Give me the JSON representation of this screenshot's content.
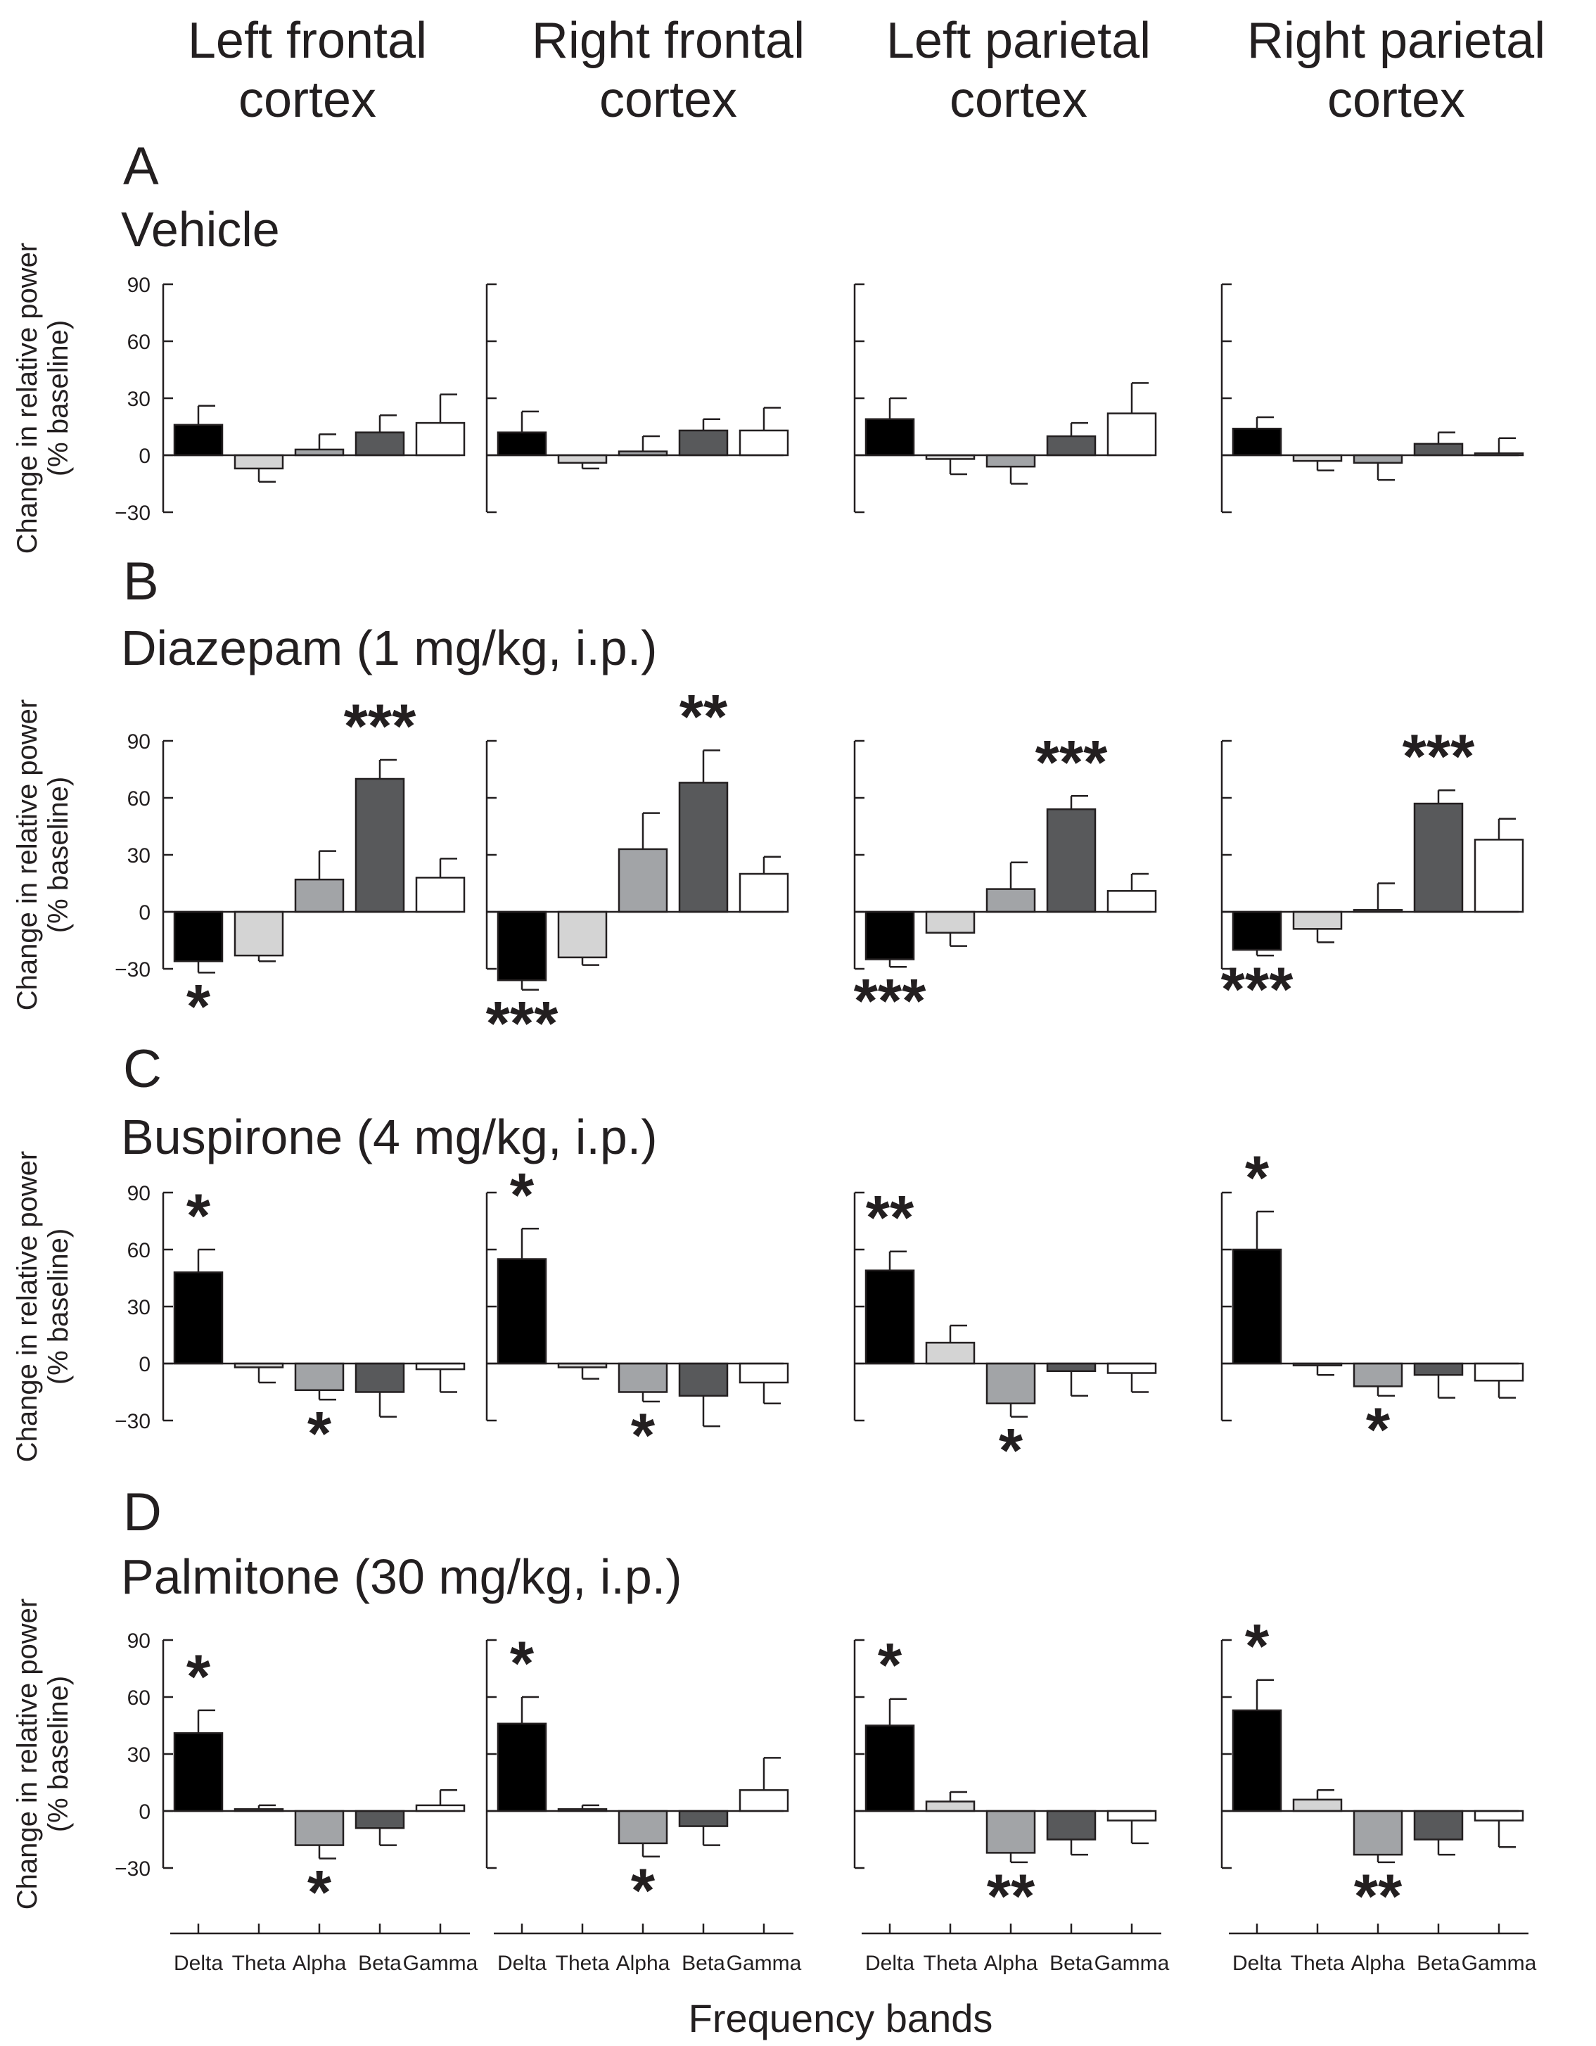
{
  "columns": [
    "Left frontal\ncortex",
    "Right frontal\ncortex",
    "Left parietal\ncortex",
    "Right parietal\ncortex"
  ],
  "ylabel_line1": "Change in relative power",
  "ylabel_line2": "(% baseline)",
  "xlabel": "Frequency bands",
  "colors": {
    "Delta": "#000000",
    "Theta": "#d4d4d4",
    "Alpha": "#a2a4a7",
    "Beta": "#58595b",
    "Gamma": "#ffffff"
  },
  "chart_data": {
    "type": "bar",
    "categories": [
      "Delta",
      "Theta",
      "Alpha",
      "Beta",
      "Gamma"
    ],
    "yticks": [
      90,
      60,
      30,
      0,
      -30
    ],
    "ytick_labels": [
      "90",
      "60",
      "30",
      "0",
      "−30"
    ],
    "ylim": [
      -30,
      90
    ],
    "panels": [
      {
        "letter": "A",
        "title": "Vehicle",
        "regions": [
          {
            "values": [
              16,
              -7,
              3,
              12,
              17
            ],
            "errors": [
              10,
              7,
              8,
              9,
              15
            ],
            "stars": []
          },
          {
            "values": [
              12,
              -4,
              2,
              13,
              13
            ],
            "errors": [
              11,
              3,
              8,
              6,
              12
            ],
            "stars": []
          },
          {
            "values": [
              19,
              -2,
              -6,
              10,
              22
            ],
            "errors": [
              11,
              8,
              9,
              7,
              16
            ],
            "stars": []
          },
          {
            "values": [
              14,
              -3,
              -4,
              6,
              1
            ],
            "errors": [
              6,
              5,
              9,
              6,
              8
            ],
            "stars": []
          }
        ]
      },
      {
        "letter": "B",
        "title": "Diazepam (1 mg/kg, i.p.)",
        "regions": [
          {
            "values": [
              -26,
              -23,
              17,
              70,
              18
            ],
            "errors": [
              6,
              3,
              15,
              10,
              10
            ],
            "stars": [
              {
                "category": "Delta",
                "text": "*",
                "side": "below"
              },
              {
                "category": "Beta",
                "text": "***",
                "side": "above"
              }
            ]
          },
          {
            "values": [
              -36,
              -24,
              33,
              68,
              20
            ],
            "errors": [
              5,
              4,
              19,
              17,
              9
            ],
            "stars": [
              {
                "category": "Delta",
                "text": "***",
                "side": "below"
              },
              {
                "category": "Beta",
                "text": "**",
                "side": "above"
              }
            ]
          },
          {
            "values": [
              -25,
              -11,
              12,
              54,
              11
            ],
            "errors": [
              4,
              7,
              14,
              7,
              9
            ],
            "stars": [
              {
                "category": "Delta",
                "text": "***",
                "side": "below"
              },
              {
                "category": "Beta",
                "text": "***",
                "side": "above"
              }
            ]
          },
          {
            "values": [
              -20,
              -9,
              1,
              57,
              38
            ],
            "errors": [
              3,
              7,
              14,
              7,
              11
            ],
            "stars": [
              {
                "category": "Delta",
                "text": "***",
                "side": "below"
              },
              {
                "category": "Beta",
                "text": "***",
                "side": "above"
              }
            ]
          }
        ]
      },
      {
        "letter": "C",
        "title": "Buspirone (4 mg/kg, i.p.)",
        "regions": [
          {
            "values": [
              48,
              -2,
              -14,
              -15,
              -3
            ],
            "errors": [
              12,
              8,
              5,
              13,
              12
            ],
            "stars": [
              {
                "category": "Delta",
                "text": "*",
                "side": "above"
              },
              {
                "category": "Alpha",
                "text": "*",
                "side": "below"
              }
            ]
          },
          {
            "values": [
              55,
              -2,
              -15,
              -17,
              -10
            ],
            "errors": [
              16,
              6,
              5,
              16,
              11
            ],
            "stars": [
              {
                "category": "Delta",
                "text": "*",
                "side": "above"
              },
              {
                "category": "Alpha",
                "text": "*",
                "side": "below"
              }
            ]
          },
          {
            "values": [
              49,
              11,
              -21,
              -4,
              -5
            ],
            "errors": [
              10,
              9,
              7,
              13,
              10
            ],
            "stars": [
              {
                "category": "Delta",
                "text": "**",
                "side": "above"
              },
              {
                "category": "Alpha",
                "text": "*",
                "side": "below"
              }
            ]
          },
          {
            "values": [
              60,
              -1,
              -12,
              -6,
              -9
            ],
            "errors": [
              20,
              5,
              5,
              12,
              9
            ],
            "stars": [
              {
                "category": "Delta",
                "text": "*",
                "side": "above"
              },
              {
                "category": "Alpha",
                "text": "*",
                "side": "below"
              }
            ]
          }
        ]
      },
      {
        "letter": "D",
        "title": "Palmitone (30 mg/kg, i.p.)",
        "regions": [
          {
            "values": [
              41,
              1,
              -18,
              -9,
              3
            ],
            "errors": [
              12,
              2,
              7,
              9,
              8
            ],
            "stars": [
              {
                "category": "Delta",
                "text": "*",
                "side": "above"
              },
              {
                "category": "Alpha",
                "text": "*",
                "side": "below"
              }
            ]
          },
          {
            "values": [
              46,
              1,
              -17,
              -8,
              11
            ],
            "errors": [
              14,
              2,
              7,
              10,
              17
            ],
            "stars": [
              {
                "category": "Delta",
                "text": "*",
                "side": "above"
              },
              {
                "category": "Alpha",
                "text": "*",
                "side": "below"
              }
            ]
          },
          {
            "values": [
              45,
              5,
              -22,
              -15,
              -5
            ],
            "errors": [
              14,
              5,
              5,
              8,
              12
            ],
            "stars": [
              {
                "category": "Delta",
                "text": "*",
                "side": "above"
              },
              {
                "category": "Alpha",
                "text": "**",
                "side": "below"
              }
            ]
          },
          {
            "values": [
              53,
              6,
              -23,
              -15,
              -5
            ],
            "errors": [
              16,
              5,
              4,
              8,
              14
            ],
            "stars": [
              {
                "category": "Delta",
                "text": "*",
                "side": "above"
              },
              {
                "category": "Alpha",
                "text": "**",
                "side": "below"
              }
            ]
          }
        ]
      }
    ]
  }
}
